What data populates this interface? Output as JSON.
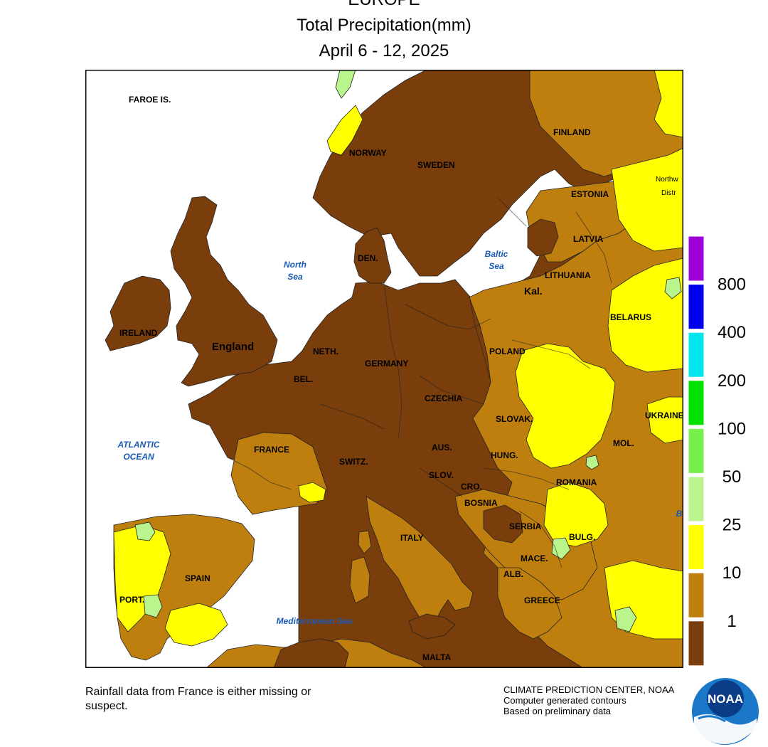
{
  "title": {
    "region": "EUROPE",
    "variable": "Total Precipitation(mm)",
    "period": "April 6 - 12, 2025"
  },
  "colors": {
    "lt1": "#7a3e0c",
    "1to10": "#bf7f0e",
    "10to25": "#ffff00",
    "25to50": "#b9f58c",
    "50to100": "#78f04c",
    "100to200": "#00e100",
    "200to400": "#00e5ee",
    "400to800": "#0000ee",
    "gt800": "#a000d8",
    "sea": "#ffffff"
  },
  "legend": {
    "thresholds": [
      "800",
      "400",
      "200",
      "100",
      "50",
      "25",
      "10",
      "1"
    ],
    "bin_colors": [
      "#a000d8",
      "#0000ee",
      "#00e5ee",
      "#00e100",
      "#78f04c",
      "#b9f58c",
      "#ffff00",
      "#bf7f0e",
      "#7a3e0c"
    ]
  },
  "map_labels": {
    "faroe": "FAROE IS.",
    "norway": "NORWAY",
    "sweden": "SWEDEN",
    "finland": "FINLAND",
    "estonia": "ESTONIA",
    "latvia": "LATVIA",
    "lithuania": "LITHUANIA",
    "kal": "Kal.",
    "belarus": "BELARUS",
    "ukraine": "UKRAINE",
    "ireland": "IRELAND",
    "england": "England",
    "den": "DEN.",
    "neth": "NETH.",
    "bel": "BEL.",
    "germany": "GERMANY",
    "poland": "POLAND",
    "czechia": "CZECHIA",
    "slovak": "SLOVAK.",
    "aus": "AUS.",
    "hung": "HUNG.",
    "switz": "SWITZ.",
    "slov": "SLOV.",
    "cro": "CRO.",
    "bosnia": "BOSNIA",
    "serbia": "SERBIA",
    "romania": "ROMANIA",
    "mol": "MOL.",
    "bulg": "BULG.",
    "mace": "MACE.",
    "alb": "ALB.",
    "greece": "GREECE",
    "italy": "ITALY",
    "france": "FRANCE",
    "spain": "SPAIN",
    "port": "PORT.",
    "malta": "MALTA",
    "northwest_dist_1": "Northw",
    "northwest_dist_2": "Distr",
    "b_edge": "B"
  },
  "sea_labels": {
    "north_sea_1": "North",
    "north_sea_2": "Sea",
    "baltic_1": "Baltic",
    "baltic_2": "Sea",
    "atlantic_1": "ATLANTIC",
    "atlantic_2": "OCEAN",
    "med": "Mediterranean Sea"
  },
  "footer": {
    "note": "Rainfall data from France is either missing or suspect.",
    "credit_1": "CLIMATE PREDICTION CENTER, NOAA",
    "credit_2": "Computer generated contours",
    "credit_3": "Based on preliminary data",
    "logo_text": "NOAA"
  }
}
